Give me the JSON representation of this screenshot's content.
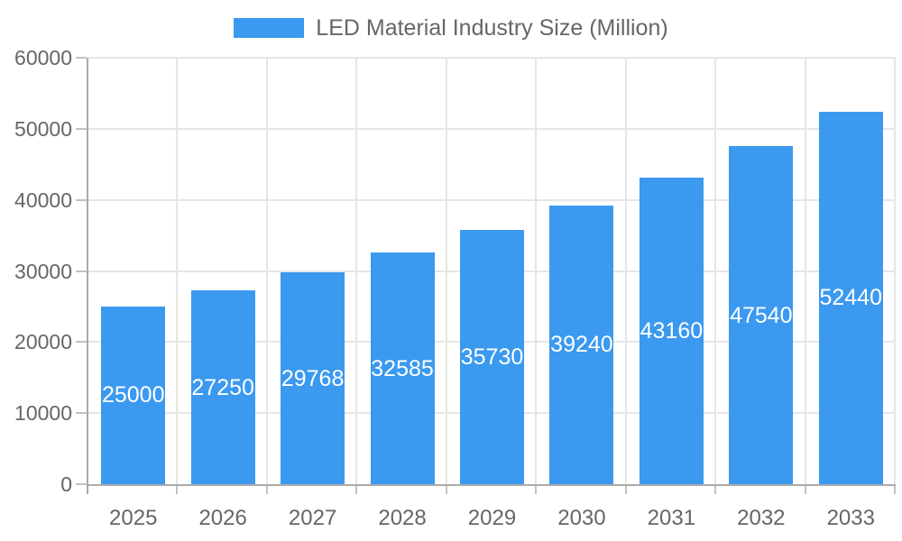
{
  "chart_data": {
    "type": "bar",
    "title": "LED Material Industry Size (Million)",
    "legend": {
      "label": "LED Material Industry Size (Million)",
      "position": "top"
    },
    "categories": [
      "2025",
      "2026",
      "2027",
      "2028",
      "2029",
      "2030",
      "2031",
      "2032",
      "2033"
    ],
    "series": [
      {
        "name": "LED Material Industry Size (Million)",
        "values": [
          25000,
          27250,
          29768,
          32585,
          35730,
          39240,
          43160,
          47540,
          52440
        ]
      }
    ],
    "bar_labels": [
      "25000",
      "27250",
      "29768",
      "32585",
      "35730",
      "39240",
      "43160",
      "47540",
      "52440"
    ],
    "xlabel": "",
    "ylabel": "",
    "ylim": [
      0,
      60000
    ],
    "yticks": [
      0,
      10000,
      20000,
      30000,
      40000,
      50000,
      60000
    ],
    "ytick_labels": [
      "0",
      "10000",
      "20000",
      "30000",
      "40000",
      "50000",
      "60000"
    ],
    "grid": true,
    "colors": {
      "bar": "#3b99ef",
      "bar_label": "#ffffff",
      "axis_line": "#ababab",
      "tick_mark": "#c2c2c2",
      "grid_line": "#e6e6e6",
      "tick_label": "#666666",
      "legend_text": "#666666"
    }
  }
}
